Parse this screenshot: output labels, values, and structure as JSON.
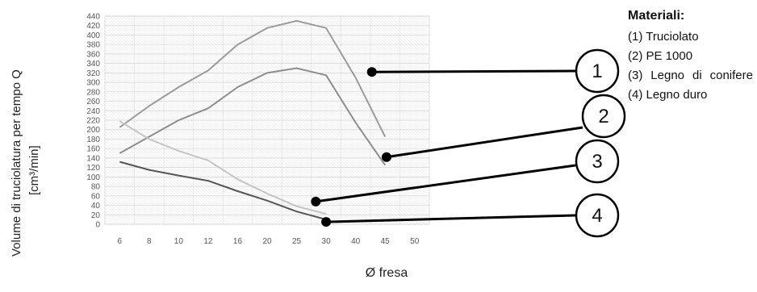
{
  "chart_data": {
    "type": "line",
    "categories": [
      "6",
      "8",
      "10",
      "12",
      "16",
      "20",
      "25",
      "30",
      "40",
      "45",
      "50"
    ],
    "series": [
      {
        "name": "1",
        "values": [
          205,
          250,
          290,
          325,
          380,
          415,
          430,
          415,
          310,
          185,
          null
        ],
        "color": "#9a9a9a"
      },
      {
        "name": "2",
        "values": [
          150,
          185,
          220,
          245,
          290,
          320,
          330,
          315,
          215,
          125,
          null
        ],
        "color": "#8c8c8c"
      },
      {
        "name": "3",
        "values": [
          218,
          180,
          155,
          135,
          95,
          65,
          38,
          22,
          null,
          null,
          null
        ],
        "color": "#c4c4c4"
      },
      {
        "name": "4",
        "values": [
          132,
          115,
          103,
          92,
          70,
          50,
          27,
          10,
          null,
          null,
          null
        ],
        "color": "#555555"
      }
    ],
    "yticks": [
      0,
      20,
      40,
      60,
      80,
      100,
      120,
      140,
      160,
      180,
      200,
      220,
      240,
      260,
      280,
      300,
      320,
      340,
      360,
      380,
      400,
      420,
      440
    ],
    "ylim": [
      0,
      440
    ],
    "ylabel_line1": "Volume di truciolatura per tempo Q",
    "ylabel_line2": "[cm³/min]",
    "xlabel": "Ø fresa",
    "grid": true,
    "callouts": [
      {
        "label": "1",
        "series": 0,
        "point": [
          8.55,
          322
        ]
      },
      {
        "label": "2",
        "series": 1,
        "point": [
          9.05,
          142
        ]
      },
      {
        "label": "3",
        "series": 2,
        "point": [
          6.65,
          48
        ]
      },
      {
        "label": "4",
        "series": 3,
        "point": [
          7.0,
          5
        ]
      }
    ]
  },
  "legend": {
    "title": "Materiali:",
    "items": [
      "(1) Truciolato",
      "(2) PE 1000",
      "(3) Legno di conifere",
      "(4) Legno duro"
    ]
  }
}
